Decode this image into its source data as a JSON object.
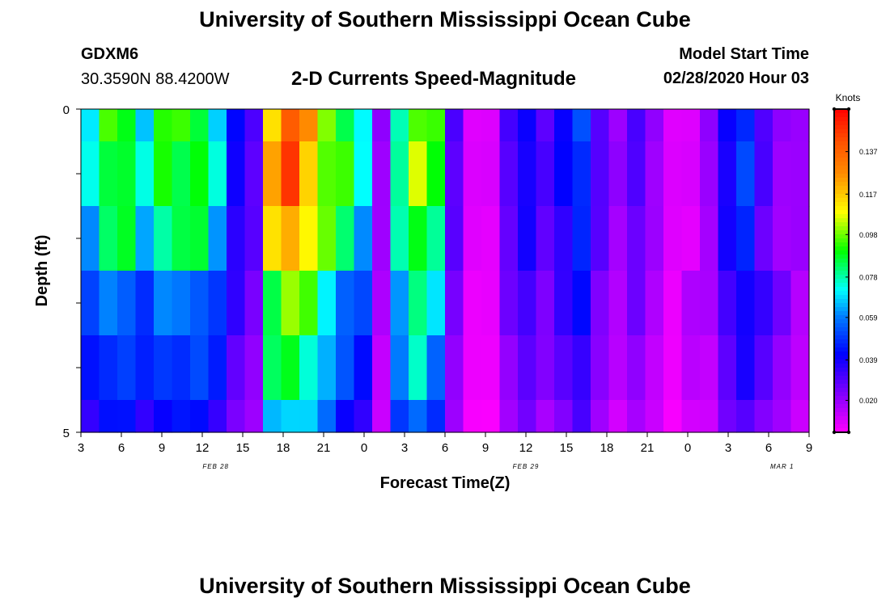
{
  "header": {
    "title": "University of Southern Mississippi Ocean Cube",
    "station_id": "GDXM6",
    "station_coords": "30.3590N 88.4200W",
    "chart_subtitle": "2-D Currents Speed-Magnitude",
    "model_start_label": "Model Start Time",
    "model_start_value": "02/28/2020 Hour 03"
  },
  "footer": {
    "title": "University of Southern Mississippi Ocean Cube"
  },
  "chart_data": {
    "type": "heatmap",
    "title": "2-D Currents Speed-Magnitude",
    "xlabel": "Forecast Time(Z)",
    "ylabel": "Depth (ft)",
    "colorbar_label": "Knots",
    "colorbar_ticks": [
      "0.137",
      "0.117",
      "0.098",
      "0.078",
      "0.059",
      "0.039",
      "0.020"
    ],
    "colorbar_range": [
      0.005,
      0.157
    ],
    "x_range_hours": [
      3,
      57
    ],
    "x_ticks": [
      "3",
      "6",
      "9",
      "12",
      "15",
      "18",
      "21",
      "0",
      "3",
      "6",
      "9",
      "12",
      "15",
      "18",
      "21",
      "0",
      "3",
      "6",
      "9"
    ],
    "date_labels": [
      {
        "text": "FEB 28",
        "hour": 13
      },
      {
        "text": "FEB 29",
        "hour": 36
      },
      {
        "text": "MAR 1",
        "hour": 55
      }
    ],
    "y_range": [
      0,
      5
    ],
    "y_tick_labels": [
      "0",
      "5"
    ],
    "depth_bands": [
      0,
      0.5,
      1.5,
      2.5,
      3.5,
      4.5,
      5
    ],
    "speed_profile": [
      [
        0.07,
        0.09,
        0.09,
        0.07,
        0.09,
        0.09,
        0.09,
        0.07,
        0.04,
        0.03,
        0.12,
        0.14,
        0.12,
        0.1,
        0.09,
        0.07,
        0.02,
        0.08,
        0.1,
        0.09,
        0.03,
        0.01,
        0.01,
        0.03,
        0.04,
        0.03,
        0.04,
        0.05,
        0.03,
        0.02,
        0.03,
        0.02,
        0.01,
        0.01,
        0.02,
        0.04,
        0.05,
        0.03,
        0.02,
        0.02
      ],
      [
        0.06,
        0.07,
        0.07,
        0.06,
        0.07,
        0.07,
        0.07,
        0.06,
        0.04,
        0.03,
        0.11,
        0.12,
        0.11,
        0.09,
        0.07,
        0.06,
        0.02,
        0.08,
        0.1,
        0.08,
        0.03,
        0.01,
        0.01,
        0.03,
        0.04,
        0.03,
        0.04,
        0.05,
        0.03,
        0.02,
        0.03,
        0.02,
        0.01,
        0.02,
        0.02,
        0.04,
        0.05,
        0.04,
        0.03,
        0.02
      ]
    ],
    "depth_factors": [
      1.0,
      1.0,
      0.92,
      0.82,
      0.72,
      0.6
    ]
  }
}
